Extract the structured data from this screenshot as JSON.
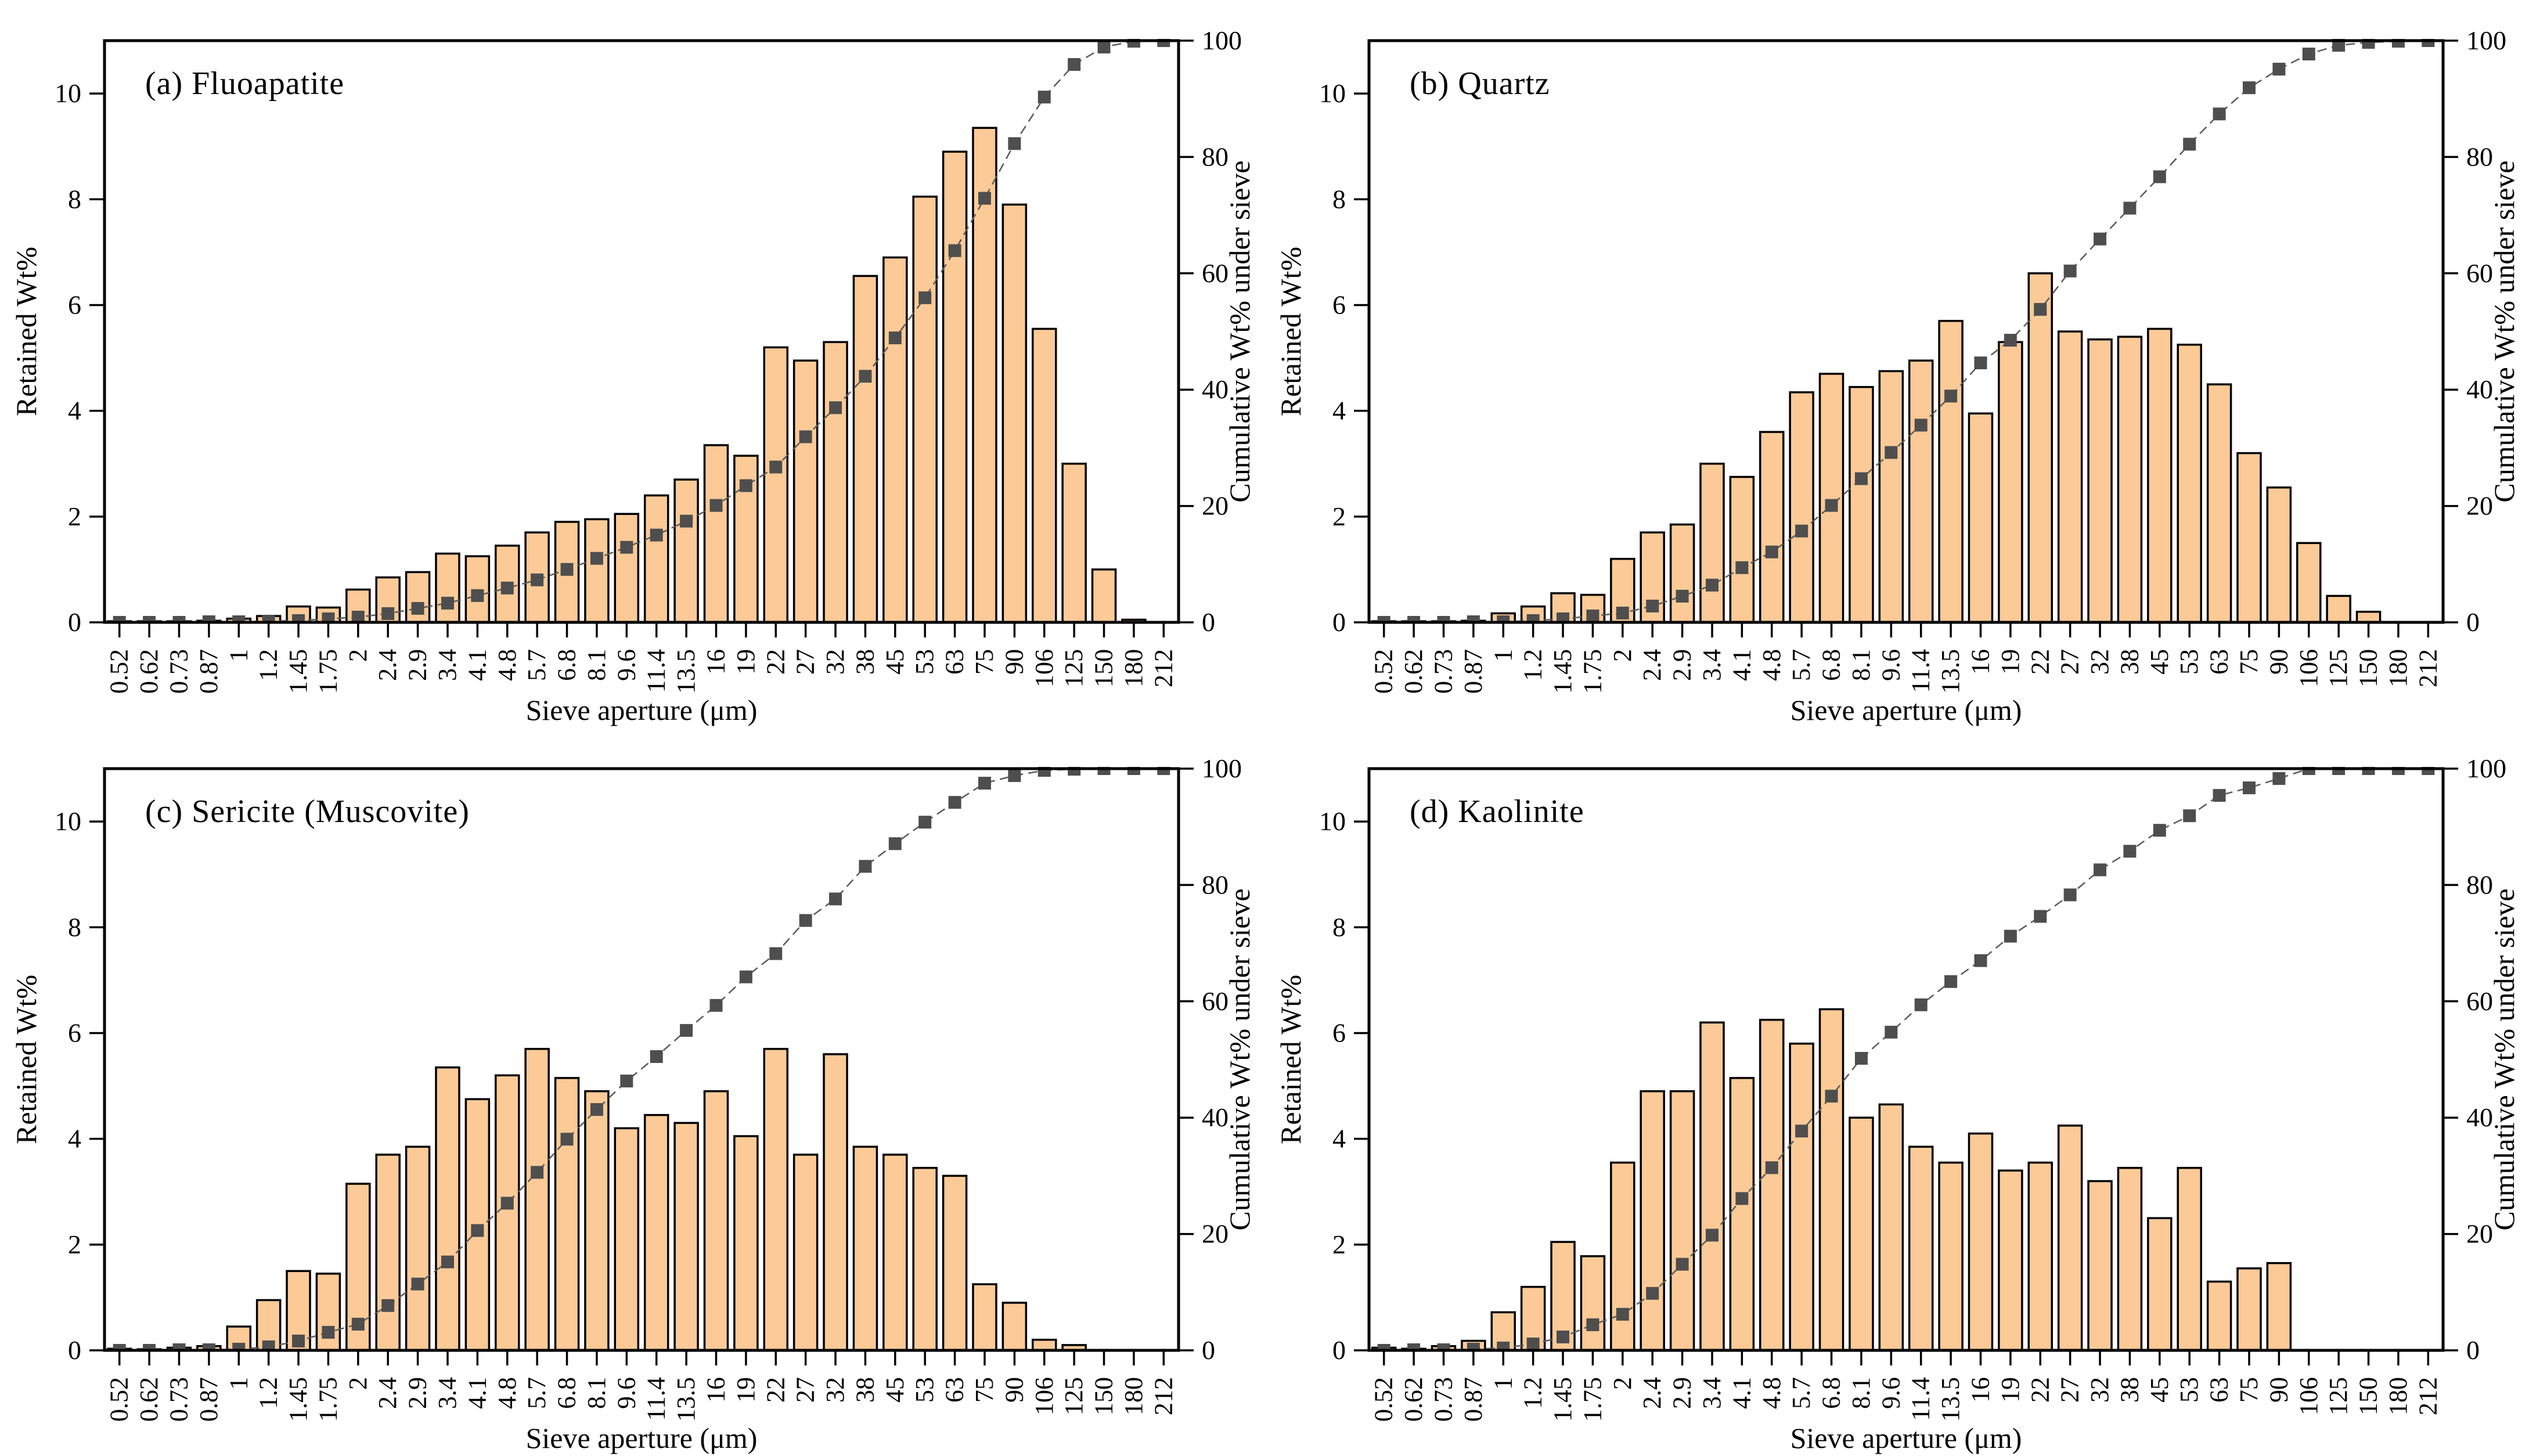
{
  "figure": {
    "xlabel": "Sieve aperture (μm)",
    "ylabel_left": "Retained Wt%",
    "ylabel_right": "Cumulative Wt% under sieve",
    "categories": [
      "0.52",
      "0.62",
      "0.73",
      "0.87",
      "1",
      "1.2",
      "1.45",
      "1.75",
      "2",
      "2.4",
      "2.9",
      "3.4",
      "4.1",
      "4.8",
      "5.7",
      "6.8",
      "8.1",
      "9.6",
      "11.4",
      "13.5",
      "16",
      "19",
      "22",
      "27",
      "32",
      "38",
      "45",
      "53",
      "63",
      "75",
      "90",
      "106",
      "125",
      "150",
      "180",
      "212"
    ],
    "ylim_left": [
      0,
      11
    ],
    "yticks_left": [
      0,
      2,
      4,
      6,
      8,
      10
    ],
    "ylim_right": [
      0,
      100
    ],
    "yticks_right": [
      0,
      20,
      40,
      60,
      80,
      100
    ],
    "grid": "off",
    "colors": {
      "bar_fill": "#FBCA97",
      "bar_stroke": "#000000",
      "marker": "#4E4E4E",
      "curve_line": "#5A5A5A",
      "axis": "#000000",
      "background": "#FFFFFF"
    }
  },
  "chart_data": [
    {
      "type": "bar",
      "title": "(a) Fluoapatite",
      "categories": [
        "0.52",
        "0.62",
        "0.73",
        "0.87",
        "1",
        "1.2",
        "1.45",
        "1.75",
        "2",
        "2.4",
        "2.9",
        "3.4",
        "4.1",
        "4.8",
        "5.7",
        "6.8",
        "8.1",
        "9.6",
        "11.4",
        "13.5",
        "16",
        "19",
        "22",
        "27",
        "32",
        "38",
        "45",
        "53",
        "63",
        "75",
        "90",
        "106",
        "125",
        "150",
        "180",
        "212"
      ],
      "series": [
        {
          "name": "Retained Wt%",
          "axis": "left",
          "values": [
            0.02,
            0.02,
            0.02,
            0.03,
            0.07,
            0.12,
            0.3,
            0.28,
            0.62,
            0.85,
            0.95,
            1.3,
            1.25,
            1.45,
            1.7,
            1.9,
            1.95,
            2.05,
            2.4,
            2.7,
            3.35,
            3.15,
            5.2,
            4.95,
            5.3,
            6.55,
            6.9,
            8.05,
            8.9,
            9.35,
            7.9,
            5.55,
            3.0,
            1.0,
            0.05,
            0
          ]
        },
        {
          "name": "Cumulative Wt% under sieve",
          "axis": "right",
          "values": [
            0,
            0,
            0,
            0.1,
            0.1,
            0.2,
            0.3,
            0.6,
            0.9,
            1.5,
            2.4,
            3.3,
            4.6,
            5.9,
            7.3,
            9.1,
            11.0,
            12.9,
            15.0,
            17.4,
            20.1,
            23.5,
            26.7,
            31.9,
            36.9,
            42.3,
            48.9,
            55.8,
            63.9,
            72.9,
            82.3,
            90.3,
            95.9,
            98.9,
            99.9,
            100
          ]
        }
      ]
    },
    {
      "type": "bar",
      "title": "(b) Quartz",
      "categories": [
        "0.52",
        "0.62",
        "0.73",
        "0.87",
        "1",
        "1.2",
        "1.45",
        "1.75",
        "2",
        "2.4",
        "2.9",
        "3.4",
        "4.1",
        "4.8",
        "5.7",
        "6.8",
        "8.1",
        "9.6",
        "11.4",
        "13.5",
        "16",
        "19",
        "22",
        "27",
        "32",
        "38",
        "45",
        "53",
        "63",
        "75",
        "90",
        "106",
        "125",
        "150",
        "180",
        "212"
      ],
      "series": [
        {
          "name": "Retained Wt%",
          "axis": "left",
          "values": [
            0.02,
            0.02,
            0.02,
            0.03,
            0.17,
            0.3,
            0.55,
            0.52,
            1.2,
            1.7,
            1.85,
            3.0,
            2.75,
            3.6,
            4.35,
            4.7,
            4.45,
            4.75,
            4.95,
            5.7,
            3.95,
            5.3,
            6.6,
            5.5,
            5.35,
            5.4,
            5.55,
            5.25,
            4.5,
            3.2,
            2.55,
            1.5,
            0.5,
            0.2,
            0,
            0
          ]
        },
        {
          "name": "Cumulative Wt% under sieve",
          "axis": "right",
          "values": [
            0,
            0,
            0,
            0.1,
            0.1,
            0.3,
            0.6,
            1.1,
            1.6,
            2.8,
            4.5,
            6.4,
            9.4,
            12.1,
            15.7,
            20.1,
            24.7,
            29.2,
            33.9,
            38.9,
            44.6,
            48.5,
            53.8,
            60.4,
            65.9,
            71.2,
            76.6,
            82.2,
            87.4,
            91.9,
            95.1,
            97.7,
            99.2,
            99.7,
            99.9,
            100
          ]
        }
      ]
    },
    {
      "type": "bar",
      "title": "(c) Sericite (Muscovite)",
      "categories": [
        "0.52",
        "0.62",
        "0.73",
        "0.87",
        "1",
        "1.2",
        "1.45",
        "1.75",
        "2",
        "2.4",
        "2.9",
        "3.4",
        "4.1",
        "4.8",
        "5.7",
        "6.8",
        "8.1",
        "9.6",
        "11.4",
        "13.5",
        "16",
        "19",
        "22",
        "27",
        "32",
        "38",
        "45",
        "53",
        "63",
        "75",
        "90",
        "106",
        "125",
        "150",
        "180",
        "212"
      ],
      "series": [
        {
          "name": "Retained Wt%",
          "axis": "left",
          "values": [
            0.03,
            0.02,
            0.05,
            0.08,
            0.45,
            0.95,
            1.5,
            1.45,
            3.15,
            3.7,
            3.85,
            5.35,
            4.75,
            5.2,
            5.7,
            5.15,
            4.9,
            4.2,
            4.45,
            4.3,
            4.9,
            4.05,
            5.7,
            3.7,
            5.6,
            3.85,
            3.7,
            3.45,
            3.3,
            1.25,
            0.9,
            0.2,
            0.1,
            0,
            0,
            0
          ]
        },
        {
          "name": "Cumulative Wt% under sieve",
          "axis": "right",
          "values": [
            0,
            0,
            0.1,
            0.1,
            0.2,
            0.6,
            1.6,
            3.1,
            4.5,
            7.7,
            11.4,
            15.2,
            20.6,
            25.3,
            30.6,
            36.3,
            41.4,
            46.3,
            50.5,
            55.0,
            59.3,
            64.2,
            68.2,
            73.9,
            77.6,
            83.2,
            87.1,
            90.8,
            94.2,
            97.5,
            98.8,
            99.7,
            99.9,
            100,
            100,
            100
          ]
        }
      ]
    },
    {
      "type": "bar",
      "title": "(d) Kaolinite",
      "categories": [
        "0.52",
        "0.62",
        "0.73",
        "0.87",
        "1",
        "1.2",
        "1.45",
        "1.75",
        "2",
        "2.4",
        "2.9",
        "3.4",
        "4.1",
        "4.8",
        "5.7",
        "6.8",
        "8.1",
        "9.6",
        "11.4",
        "13.5",
        "16",
        "19",
        "22",
        "27",
        "32",
        "38",
        "45",
        "53",
        "63",
        "75",
        "90",
        "106",
        "125",
        "150",
        "180",
        "212"
      ],
      "series": [
        {
          "name": "Retained Wt%",
          "axis": "left",
          "values": [
            0.05,
            0.03,
            0.08,
            0.18,
            0.72,
            1.2,
            2.05,
            1.78,
            3.55,
            4.9,
            4.9,
            6.2,
            5.15,
            6.25,
            5.8,
            6.45,
            4.4,
            4.65,
            3.85,
            3.55,
            4.1,
            3.4,
            3.55,
            4.25,
            3.2,
            3.45,
            2.5,
            3.45,
            1.3,
            1.55,
            1.65,
            0,
            0,
            0,
            0,
            0
          ]
        },
        {
          "name": "Cumulative Wt% under sieve",
          "axis": "right",
          "values": [
            0,
            0.1,
            0.1,
            0.2,
            0.4,
            1.1,
            2.3,
            4.4,
            6.2,
            9.8,
            14.8,
            19.8,
            26.1,
            31.4,
            37.7,
            43.7,
            50.2,
            54.7,
            59.4,
            63.4,
            67.0,
            71.2,
            74.6,
            78.3,
            82.6,
            85.8,
            89.4,
            91.9,
            95.4,
            96.7,
            98.3,
            100,
            100,
            100,
            100,
            100
          ]
        }
      ]
    }
  ]
}
